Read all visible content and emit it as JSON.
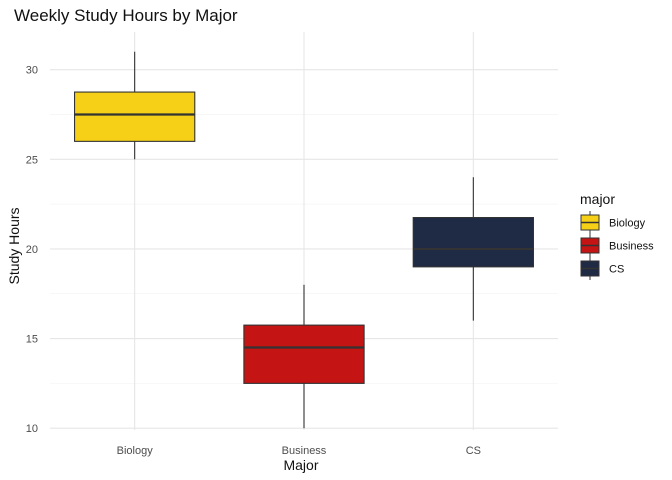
{
  "chart_data": {
    "type": "boxplot",
    "title": "Weekly Study Hours by Major",
    "xlabel": "Major",
    "ylabel": "Study Hours",
    "categories": [
      "Biology",
      "Business",
      "CS"
    ],
    "ylim": [
      9.9,
      32.1
    ],
    "y_ticks": [
      10,
      15,
      20,
      25,
      30
    ],
    "grid": true,
    "legend": {
      "title": "major",
      "position": "right",
      "entries": [
        "Biology",
        "Business",
        "CS"
      ]
    },
    "boxes": [
      {
        "category": "Biology",
        "min": 25,
        "q1": 26,
        "median": 27.5,
        "q3": 28.75,
        "max": 31,
        "color": "#F5D016"
      },
      {
        "category": "Business",
        "min": 10,
        "q1": 12.5,
        "median": 14.5,
        "q3": 15.75,
        "max": 18,
        "color": "#C41414"
      },
      {
        "category": "CS",
        "min": 16,
        "q1": 19,
        "median": 20,
        "q3": 21.75,
        "max": 24,
        "color": "#1F2A44"
      }
    ]
  }
}
